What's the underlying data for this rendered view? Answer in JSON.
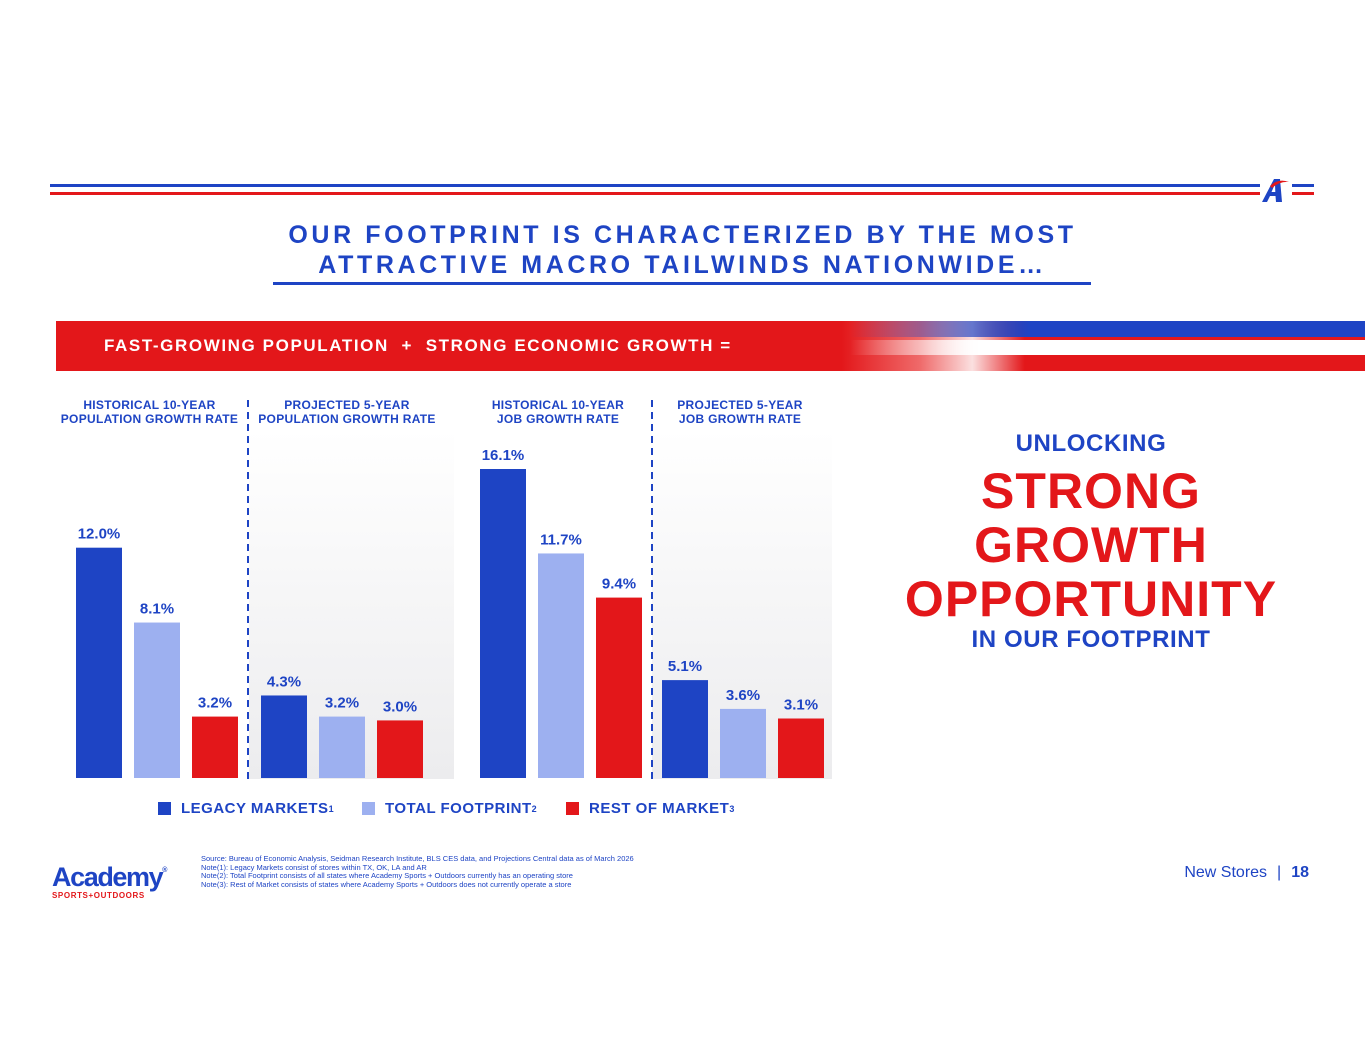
{
  "title": {
    "line1": "OUR FOOTPRINT IS CHARACTERIZED BY THE MOST",
    "line2": "ATTRACTIVE MACRO TAILWINDS NATIONWIDE…"
  },
  "banner": {
    "text": "FAST-GROWING POPULATION  +  STRONG ECONOMIC GROWTH ="
  },
  "callout": {
    "line1": "UNLOCKING",
    "line2": "STRONG",
    "line3": "GROWTH",
    "line4": "OPPORTUNITY",
    "line5": "IN OUR FOOTPRINT"
  },
  "legend": [
    {
      "label": "LEGACY MARKETS",
      "note": "1",
      "color": "#1e44c4"
    },
    {
      "label": "TOTAL FOOTPRINT",
      "note": "2",
      "color": "#9db0f0"
    },
    {
      "label": "REST OF MARKET",
      "note": "3",
      "color": "#e3171a"
    }
  ],
  "chart_data": [
    {
      "type": "bar",
      "title": "HISTORICAL 10-YEAR POPULATION GROWTH RATE",
      "title_lines": [
        "HISTORICAL 10-YEAR",
        "POPULATION GROWTH RATE"
      ],
      "categories": [
        "LEGACY MARKETS",
        "TOTAL FOOTPRINT",
        "REST OF MARKET"
      ],
      "values": [
        12.0,
        8.1,
        3.2
      ],
      "labels": [
        "12.0%",
        "8.1%",
        "3.2%"
      ],
      "ylim": [
        0,
        16.1
      ]
    },
    {
      "type": "bar",
      "title": "PROJECTED 5-YEAR POPULATION GROWTH RATE",
      "title_lines": [
        "PROJECTED 5-YEAR",
        "POPULATION GROWTH RATE"
      ],
      "categories": [
        "LEGACY MARKETS",
        "TOTAL FOOTPRINT",
        "REST OF MARKET"
      ],
      "values": [
        4.3,
        3.2,
        3.0
      ],
      "labels": [
        "4.3%",
        "3.2%",
        "3.0%"
      ],
      "ylim": [
        0,
        16.1
      ]
    },
    {
      "type": "bar",
      "title": "HISTORICAL 10-YEAR JOB GROWTH RATE",
      "title_lines": [
        "HISTORICAL 10-YEAR",
        "JOB GROWTH RATE"
      ],
      "categories": [
        "LEGACY MARKETS",
        "TOTAL FOOTPRINT",
        "REST OF MARKET"
      ],
      "values": [
        16.1,
        11.7,
        9.4
      ],
      "labels": [
        "16.1%",
        "11.7%",
        "9.4%"
      ],
      "ylim": [
        0,
        16.1
      ]
    },
    {
      "type": "bar",
      "title": "PROJECTED 5-YEAR JOB GROWTH RATE",
      "title_lines": [
        "PROJECTED 5-YEAR",
        "JOB GROWTH RATE"
      ],
      "categories": [
        "LEGACY MARKETS",
        "TOTAL FOOTPRINT",
        "REST OF MARKET"
      ],
      "values": [
        5.1,
        3.6,
        3.1
      ],
      "labels": [
        "5.1%",
        "3.6%",
        "3.1%"
      ],
      "ylim": [
        0,
        16.1
      ]
    }
  ],
  "logo": {
    "word": "Academy",
    "reg": "®",
    "sub": "SPORTS+OUTDOORS"
  },
  "notes": [
    "Source: Bureau of Economic Analysis, Seidman Research Institute, BLS CES data, and Projections Central data as of March 2026",
    "Note(1): Legacy Markets consist of stores within TX, OK, LA and AR",
    "Note(2): Total Footprint consists of all states where Academy Sports + Outdoors currently has an operating store",
    "Note(3): Rest of Market consists of states where Academy Sports + Outdoors does not currently operate a store"
  ],
  "footer": {
    "section": "New Stores",
    "separator": "|",
    "page": "18"
  },
  "colors": {
    "blue": "#1e44c4",
    "light_blue": "#9db0f0",
    "red": "#e3171a"
  }
}
